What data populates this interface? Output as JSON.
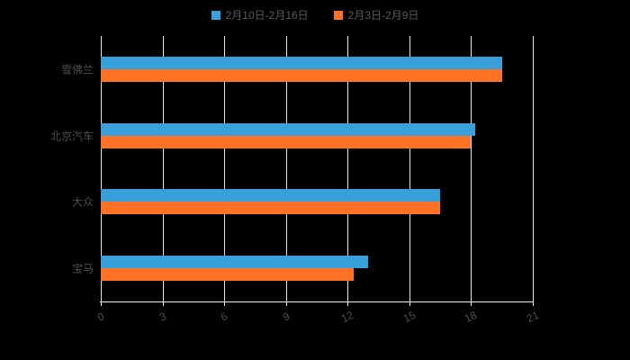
{
  "chart_data": {
    "type": "bar",
    "orientation": "horizontal",
    "title": "",
    "categories": [
      "雪佛兰",
      "北京汽车",
      "大众",
      "宝马"
    ],
    "series": [
      {
        "name": "2月10日-2月16日",
        "color": "#38A1DB",
        "values": [
          19.5,
          18.2,
          16.5,
          13.0
        ]
      },
      {
        "name": "2月3日-2月9日",
        "color": "#FF7124",
        "values": [
          19.5,
          18.0,
          16.5,
          12.3
        ]
      }
    ],
    "xlim": [
      0,
      21
    ],
    "xticks": [
      0,
      3,
      6,
      9,
      12,
      15,
      18,
      21
    ],
    "grid": true,
    "legend_position": "top",
    "background_color": "#000000",
    "grid_color": "#e6e6e6",
    "text_color": "#4f4f4f"
  }
}
